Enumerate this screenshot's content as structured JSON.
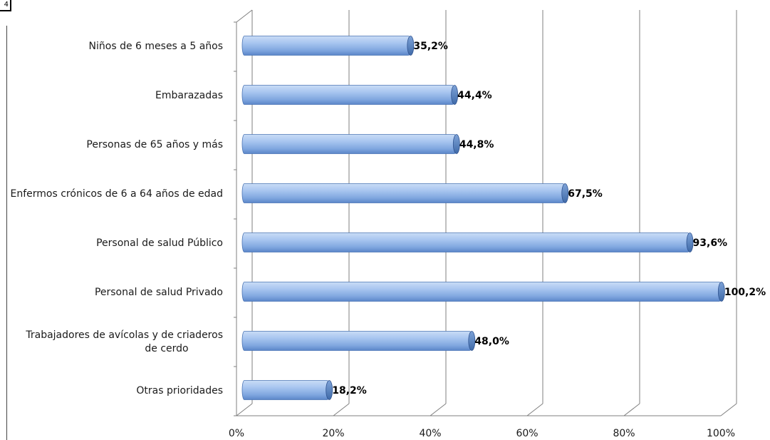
{
  "corner_label": "4",
  "chart_data": {
    "type": "bar",
    "orientation": "horizontal",
    "title": "",
    "xlabel": "",
    "ylabel": "",
    "xlim": [
      0,
      100
    ],
    "x_ticks": [
      "0%",
      "20%",
      "40%",
      "60%",
      "80%",
      "100%"
    ],
    "grid": true,
    "categories": [
      "Niños de 6 meses a 5 años",
      "Embarazadas",
      "Personas de 65 años y más",
      "Enfermos crónicos de 6 a 64 años de edad",
      "Personal de salud Público",
      "Personal de salud Privado",
      "Trabajadores de avícolas y de criaderos de cerdo",
      "Otras prioridades"
    ],
    "values": [
      35.2,
      44.4,
      44.8,
      67.5,
      93.6,
      100.2,
      48.0,
      18.2
    ],
    "value_labels": [
      "35,2%",
      "44,4%",
      "44,8%",
      "67,5%",
      "93,6%",
      "100,2%",
      "48,0%",
      "18,2%"
    ],
    "bar_color": "#8fb4e8"
  }
}
